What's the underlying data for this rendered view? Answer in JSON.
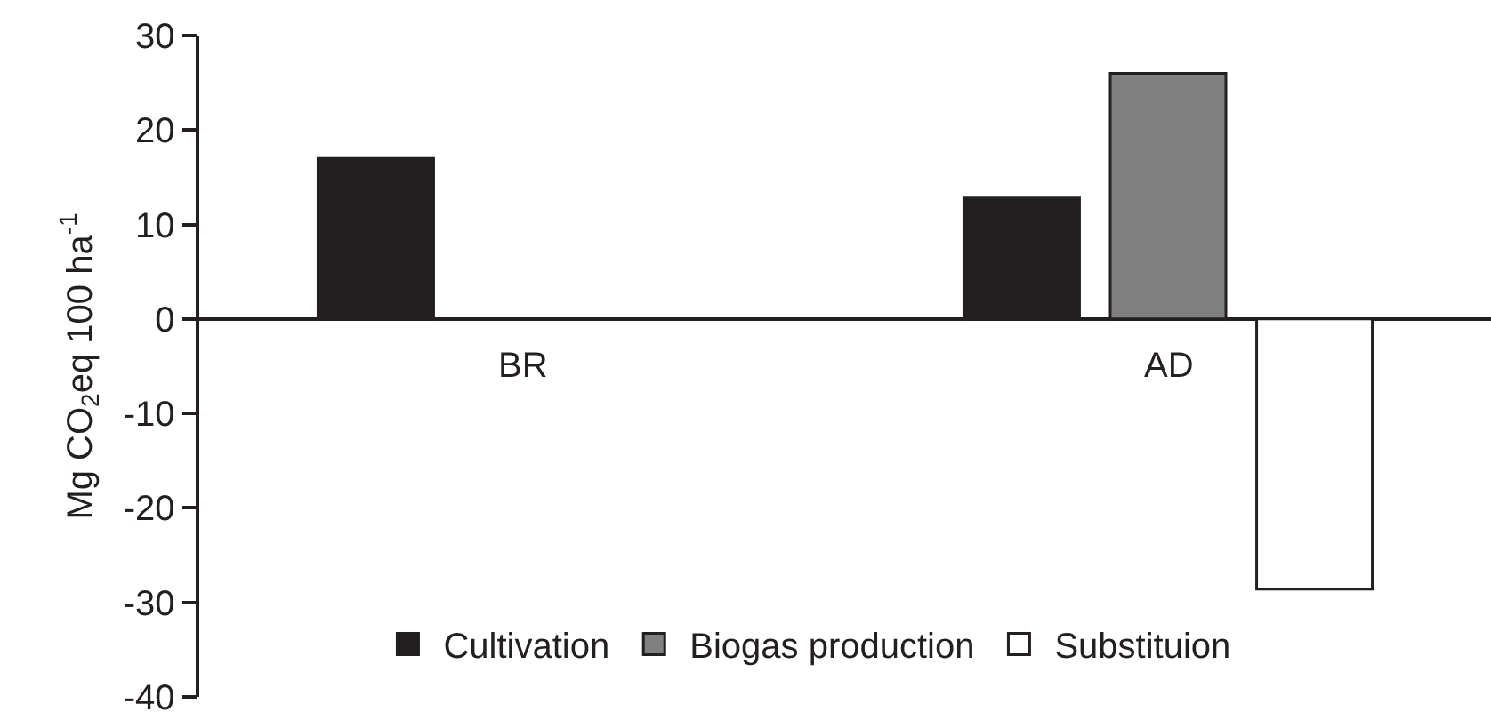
{
  "chart_data": {
    "type": "bar",
    "categories": [
      "BR",
      "AD"
    ],
    "series": [
      {
        "name": "Cultivation",
        "color": "#231f20",
        "values": [
          17,
          12.8
        ]
      },
      {
        "name": "Biogas production",
        "color": "#808080",
        "values": [
          null,
          26
        ]
      },
      {
        "name": "Substituion",
        "color": "#ffffff",
        "values": [
          null,
          -28.6
        ]
      }
    ],
    "ylabel": "Mg CO$_{2}$eq 100 ha$^{-1}$",
    "ylim": [
      -40,
      30
    ],
    "yticks": [
      -40,
      -30,
      -20,
      -10,
      0,
      10,
      20,
      30
    ],
    "grid": false,
    "legend": "bottom"
  }
}
